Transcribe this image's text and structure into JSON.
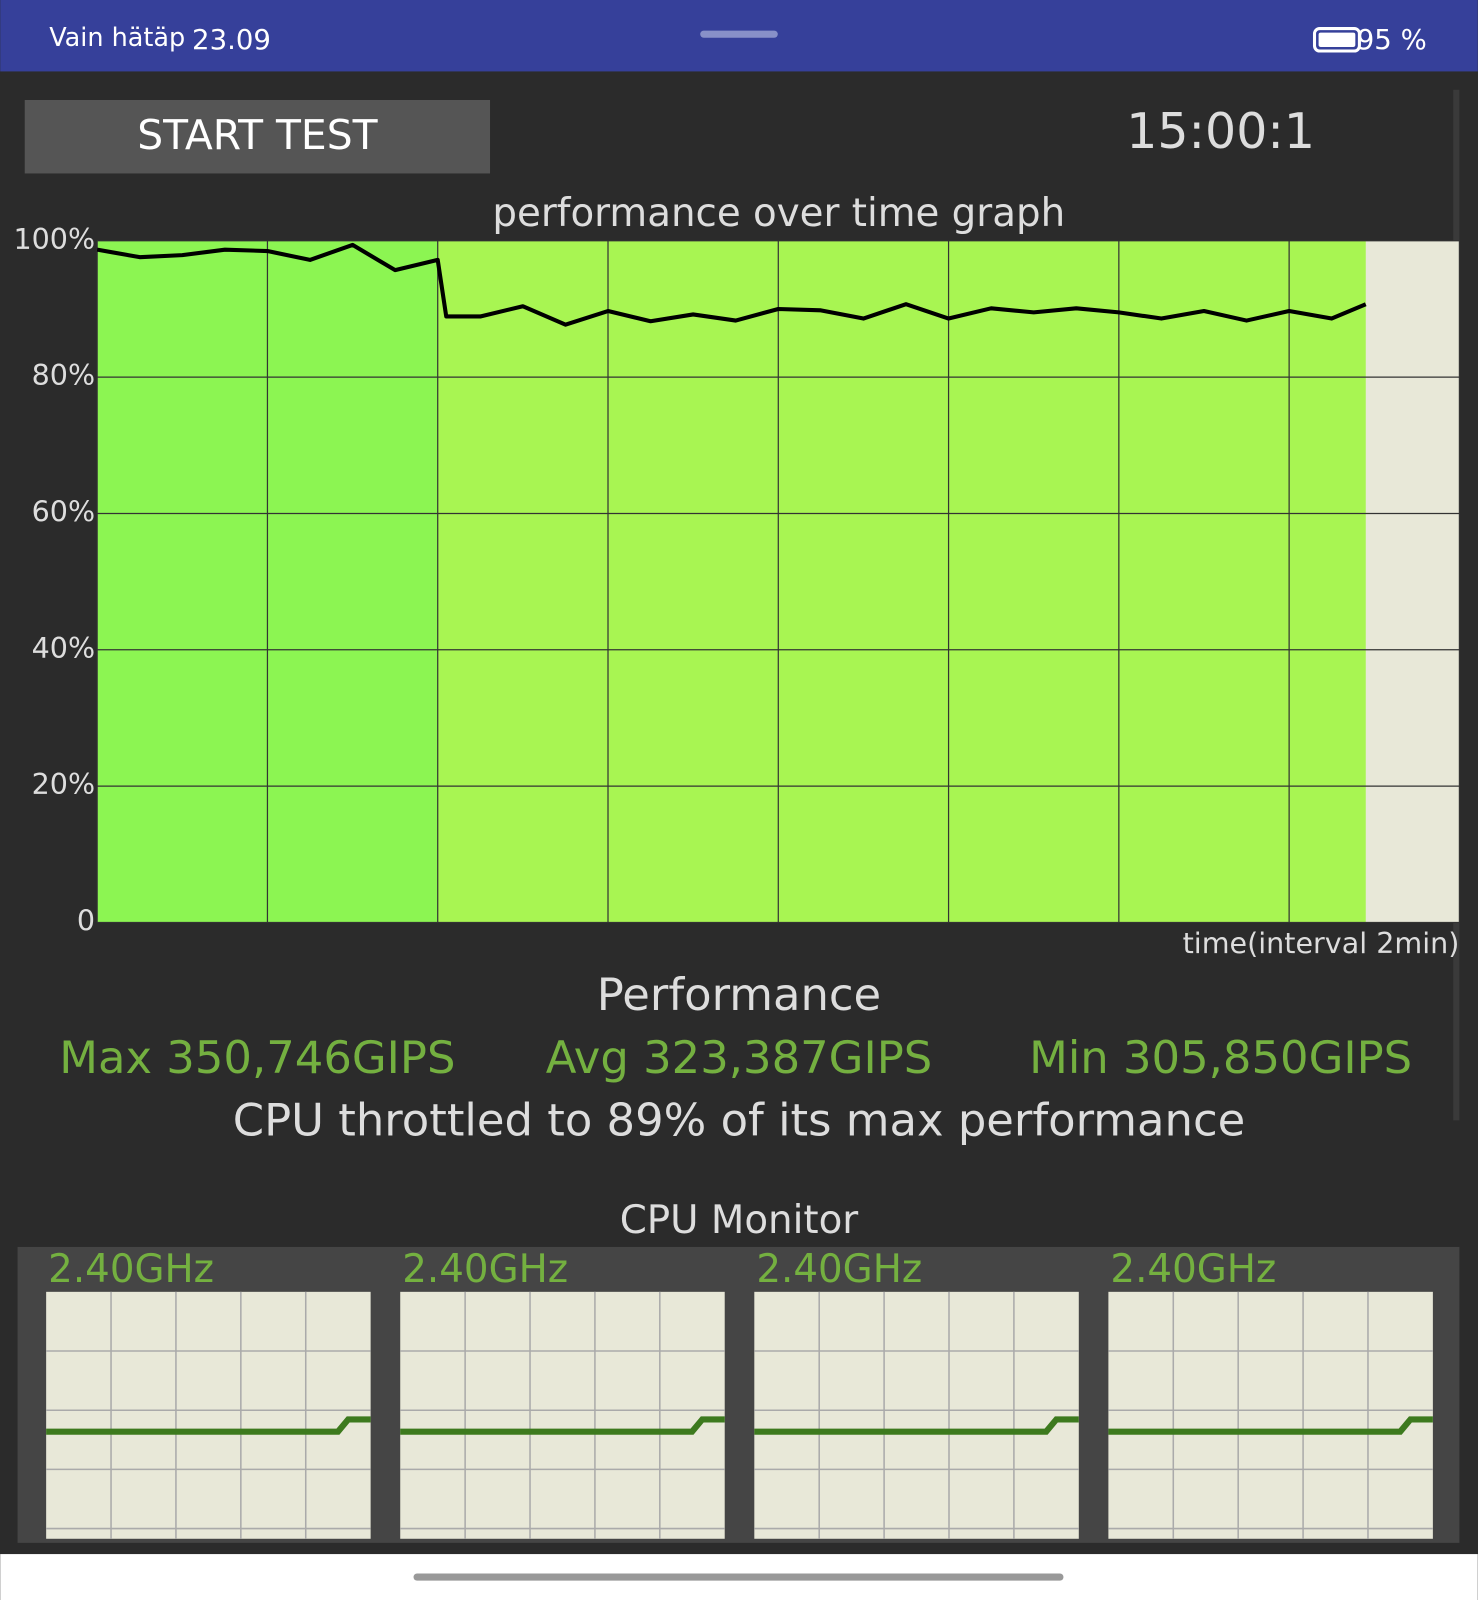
{
  "status_bar": {
    "left": "Vain hätäp",
    "time": "23.09",
    "battery": "95 %"
  },
  "controls": {
    "button": "START TEST",
    "timer": "15:00:1"
  },
  "chart_data": {
    "type": "line",
    "title": "performance over time graph",
    "x_label": "time(interval 2min)",
    "x": [
      0,
      0.5,
      1,
      1.5,
      2,
      2.5,
      3,
      3.5,
      4,
      4.1,
      4.5,
      5,
      5.5,
      6,
      6.5,
      7,
      7.5,
      8,
      8.5,
      9,
      9.5,
      10,
      10.5,
      11,
      11.5,
      12,
      12.5,
      13,
      13.5,
      14,
      14.5,
      14.9
    ],
    "values": [
      98.7,
      97.6,
      97.9,
      98.7,
      98.5,
      97.2,
      99.4,
      95.7,
      97.2,
      88.9,
      88.9,
      90.4,
      87.7,
      89.7,
      88.2,
      89.2,
      88.3,
      90.0,
      89.8,
      88.6,
      90.7,
      88.6,
      90.1,
      89.5,
      90.1,
      89.5,
      88.6,
      89.7,
      88.3,
      89.7,
      88.6,
      90.7
    ],
    "color": "#000000",
    "xlim": [
      0,
      16
    ],
    "xticks": [
      0,
      2,
      4,
      6,
      8,
      10,
      12,
      14,
      16
    ],
    "ylim": [
      0,
      100
    ],
    "yticks": [
      0,
      {
        "value": 20,
        "label": "20%"
      },
      {
        "value": 40,
        "label": "40%"
      },
      {
        "value": 60,
        "label": "60%"
      },
      {
        "value": 80,
        "label": "80%"
      },
      {
        "value": 100,
        "label": "100%"
      }
    ],
    "grid": true
  },
  "summary": {
    "heading": "Performance",
    "max": "Max 350,746GIPS",
    "avg": "Avg 323,387GIPS",
    "min": "Min 305,850GIPS",
    "throttle": "CPU throttled to 89% of its max performance"
  },
  "cpu_monitor": {
    "title": "CPU Monitor",
    "cores": [
      "2.40GHz",
      "2.40GHz",
      "2.40GHz",
      "2.40GHz"
    ]
  }
}
